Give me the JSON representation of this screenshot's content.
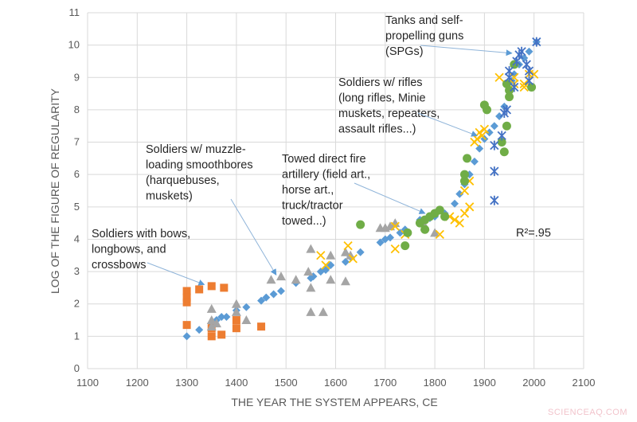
{
  "chart_data": {
    "type": "scatter",
    "xlabel": "THE YEAR THE SYSTEM APPEARS, CE",
    "ylabel": "LOG OF THE FIGURE OF REGULARITY",
    "xlim": [
      1100,
      2100
    ],
    "ylim": [
      0,
      11
    ],
    "xticks": [
      1100,
      1200,
      1300,
      1400,
      1500,
      1600,
      1700,
      1800,
      1900,
      2000,
      2100
    ],
    "yticks": [
      0,
      1,
      2,
      3,
      4,
      5,
      6,
      7,
      8,
      9,
      10,
      11
    ],
    "grid": true,
    "legend": "none",
    "r2_label": "R²=.95",
    "series": [
      {
        "marker": "diamond",
        "color": "#5b9bd5",
        "points": [
          [
            1300,
            1.0
          ],
          [
            1325,
            1.2
          ],
          [
            1350,
            1.4
          ],
          [
            1360,
            1.5
          ],
          [
            1370,
            1.6
          ],
          [
            1380,
            1.6
          ],
          [
            1400,
            1.8
          ],
          [
            1420,
            1.9
          ],
          [
            1450,
            2.1
          ],
          [
            1460,
            2.2
          ],
          [
            1475,
            2.3
          ],
          [
            1490,
            2.4
          ],
          [
            1520,
            2.65
          ],
          [
            1550,
            2.8
          ],
          [
            1555,
            2.85
          ],
          [
            1570,
            3.0
          ],
          [
            1580,
            3.05
          ],
          [
            1590,
            3.2
          ],
          [
            1620,
            3.3
          ],
          [
            1630,
            3.45
          ],
          [
            1650,
            3.6
          ],
          [
            1690,
            3.9
          ],
          [
            1700,
            4.0
          ],
          [
            1710,
            4.05
          ],
          [
            1730,
            4.2
          ],
          [
            1740,
            4.3
          ],
          [
            1770,
            4.6
          ],
          [
            1790,
            4.65
          ],
          [
            1800,
            4.7
          ],
          [
            1820,
            4.8
          ],
          [
            1840,
            5.1
          ],
          [
            1850,
            5.4
          ],
          [
            1860,
            5.7
          ],
          [
            1870,
            6.0
          ],
          [
            1880,
            6.4
          ],
          [
            1890,
            6.8
          ],
          [
            1900,
            7.1
          ],
          [
            1910,
            7.3
          ],
          [
            1920,
            7.5
          ],
          [
            1930,
            7.8
          ],
          [
            1940,
            8.1
          ],
          [
            1950,
            8.6
          ],
          [
            1955,
            8.9
          ],
          [
            1960,
            9.1
          ],
          [
            1970,
            9.4
          ],
          [
            1980,
            9.6
          ],
          [
            1990,
            9.8
          ],
          [
            2005,
            10.1
          ]
        ]
      },
      {
        "marker": "square",
        "color": "#ed7d31",
        "points": [
          [
            1300,
            2.4
          ],
          [
            1300,
            2.2
          ],
          [
            1300,
            2.05
          ],
          [
            1300,
            1.35
          ],
          [
            1325,
            2.45
          ],
          [
            1350,
            2.55
          ],
          [
            1375,
            2.5
          ],
          [
            1350,
            1.0
          ],
          [
            1350,
            1.25
          ],
          [
            1370,
            1.05
          ],
          [
            1400,
            1.5
          ],
          [
            1400,
            1.25
          ],
          [
            1450,
            1.3
          ]
        ]
      },
      {
        "marker": "triangle",
        "color": "#a5a5a5",
        "points": [
          [
            1350,
            1.85
          ],
          [
            1350,
            1.5
          ],
          [
            1360,
            1.4
          ],
          [
            1350,
            1.3
          ],
          [
            1400,
            2.0
          ],
          [
            1400,
            1.75
          ],
          [
            1420,
            1.5
          ],
          [
            1470,
            2.75
          ],
          [
            1490,
            2.85
          ],
          [
            1520,
            2.75
          ],
          [
            1545,
            3.0
          ],
          [
            1550,
            3.7
          ],
          [
            1550,
            2.5
          ],
          [
            1550,
            1.75
          ],
          [
            1575,
            1.75
          ],
          [
            1590,
            3.5
          ],
          [
            1590,
            2.75
          ],
          [
            1620,
            3.6
          ],
          [
            1620,
            2.7
          ],
          [
            1630,
            3.5
          ],
          [
            1690,
            4.35
          ],
          [
            1700,
            4.35
          ],
          [
            1710,
            4.4
          ],
          [
            1720,
            4.5
          ],
          [
            1780,
            4.4
          ],
          [
            1800,
            4.2
          ]
        ]
      },
      {
        "marker": "x",
        "color": "#ffc000",
        "points": [
          [
            1570,
            3.5
          ],
          [
            1580,
            3.2
          ],
          [
            1625,
            3.8
          ],
          [
            1635,
            3.4
          ],
          [
            1720,
            4.4
          ],
          [
            1720,
            3.7
          ],
          [
            1740,
            4.15
          ],
          [
            1810,
            4.15
          ],
          [
            1830,
            4.7
          ],
          [
            1840,
            4.6
          ],
          [
            1850,
            4.5
          ],
          [
            1860,
            4.8
          ],
          [
            1870,
            5.0
          ],
          [
            1860,
            5.5
          ],
          [
            1870,
            5.8
          ],
          [
            1880,
            7.0
          ],
          [
            1885,
            7.1
          ],
          [
            1890,
            7.3
          ],
          [
            1895,
            7.2
          ],
          [
            1900,
            7.4
          ],
          [
            1930,
            9.0
          ],
          [
            1960,
            9.0
          ],
          [
            1960,
            8.8
          ],
          [
            1980,
            8.8
          ],
          [
            1980,
            8.7
          ],
          [
            1990,
            9.1
          ],
          [
            2000,
            9.1
          ]
        ]
      },
      {
        "marker": "circle",
        "color": "#70ad47",
        "points": [
          [
            1650,
            4.45
          ],
          [
            1740,
            3.8
          ],
          [
            1745,
            4.2
          ],
          [
            1770,
            4.5
          ],
          [
            1780,
            4.6
          ],
          [
            1780,
            4.3
          ],
          [
            1790,
            4.7
          ],
          [
            1800,
            4.8
          ],
          [
            1810,
            4.9
          ],
          [
            1820,
            4.7
          ],
          [
            1860,
            5.8
          ],
          [
            1860,
            6.0
          ],
          [
            1865,
            6.5
          ],
          [
            1900,
            8.15
          ],
          [
            1905,
            8.0
          ],
          [
            1935,
            7.0
          ],
          [
            1940,
            6.7
          ],
          [
            1945,
            7.5
          ],
          [
            1950,
            8.4
          ],
          [
            1950,
            8.6
          ],
          [
            1945,
            8.8
          ],
          [
            1960,
            9.4
          ],
          [
            1995,
            8.7
          ]
        ]
      },
      {
        "marker": "asterisk",
        "color": "#4472c4",
        "points": [
          [
            1920,
            5.2
          ],
          [
            1920,
            6.1
          ],
          [
            1920,
            6.9
          ],
          [
            1935,
            7.2
          ],
          [
            1940,
            7.9
          ],
          [
            1945,
            8.0
          ],
          [
            1950,
            9.0
          ],
          [
            1950,
            9.2
          ],
          [
            1960,
            8.7
          ],
          [
            1965,
            9.5
          ],
          [
            1970,
            9.7
          ],
          [
            1975,
            9.8
          ],
          [
            1985,
            9.4
          ],
          [
            1990,
            9.2
          ],
          [
            1990,
            8.9
          ],
          [
            2005,
            10.1
          ]
        ]
      }
    ],
    "annotations": [
      {
        "lines": [
          "Soldiers with bows,",
          "longbows, and",
          "crossbows"
        ],
        "arrow_to": [
          1335,
          2.6
        ]
      },
      {
        "lines": [
          "Soldiers w/ muzzle-",
          "loading smoothbores",
          "(harquebuses,",
          "muskets)"
        ],
        "arrow_to": [
          1480,
          2.9
        ]
      },
      {
        "lines": [
          "Towed direct fire",
          "artillery (field art.,",
          "horse art.,",
          "truck/tractor",
          "towed...)"
        ],
        "arrow_to": [
          1780,
          4.8
        ]
      },
      {
        "lines": [
          "Soldiers w/ rifles",
          "(long rifles, Minie",
          "muskets, repeaters,",
          "assault rifles...)"
        ],
        "arrow_to": [
          1885,
          7.2
        ]
      },
      {
        "lines": [
          "Tanks and self-",
          "propelling guns",
          "(SPGs)"
        ],
        "arrow_to": [
          1955,
          9.75
        ]
      }
    ]
  },
  "watermark": "SCIENCEAQ.COM"
}
